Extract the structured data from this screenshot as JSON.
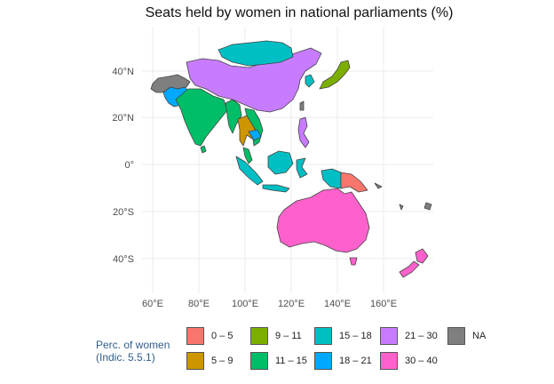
{
  "title": "Seats held by women in national parliaments (%)",
  "axes": {
    "x_ticks": [
      "60°E",
      "80°E",
      "100°E",
      "120°E",
      "140°E",
      "160°E"
    ],
    "y_ticks": [
      "40°N",
      "20°N",
      "0°",
      "20°S",
      "40°S"
    ]
  },
  "legend": {
    "title_line1": "Perc. of women",
    "title_line2": "(Indic. 5.5.1)",
    "items": [
      {
        "label": "0 – 5",
        "color": "#f8766d"
      },
      {
        "label": "5 – 9",
        "color": "#cd9600"
      },
      {
        "label": "9 – 11",
        "color": "#7cae00"
      },
      {
        "label": "11 – 15",
        "color": "#00be67"
      },
      {
        "label": "15 – 18",
        "color": "#00bfc4"
      },
      {
        "label": "18 – 21",
        "color": "#00a9ff"
      },
      {
        "label": "21 – 30",
        "color": "#c77cff"
      },
      {
        "label": "30 – 40",
        "color": "#ff61cc"
      },
      {
        "label": "NA",
        "color": "#7f7f7f"
      }
    ]
  },
  "regions": {
    "china": "21 – 30",
    "mongolia": "15 – 18",
    "india": "11 – 15",
    "kazakhstan": "NA",
    "uzbekistan": "18 – 21",
    "japan": "9 – 11",
    "thailand": "5 – 9",
    "myanmar": "11 – 15",
    "indonesia": "15 – 18",
    "papua_new_guinea": "0 – 5",
    "philippines": "21 – 30",
    "australia": "30 – 40",
    "new_zealand": "30 – 40"
  }
}
